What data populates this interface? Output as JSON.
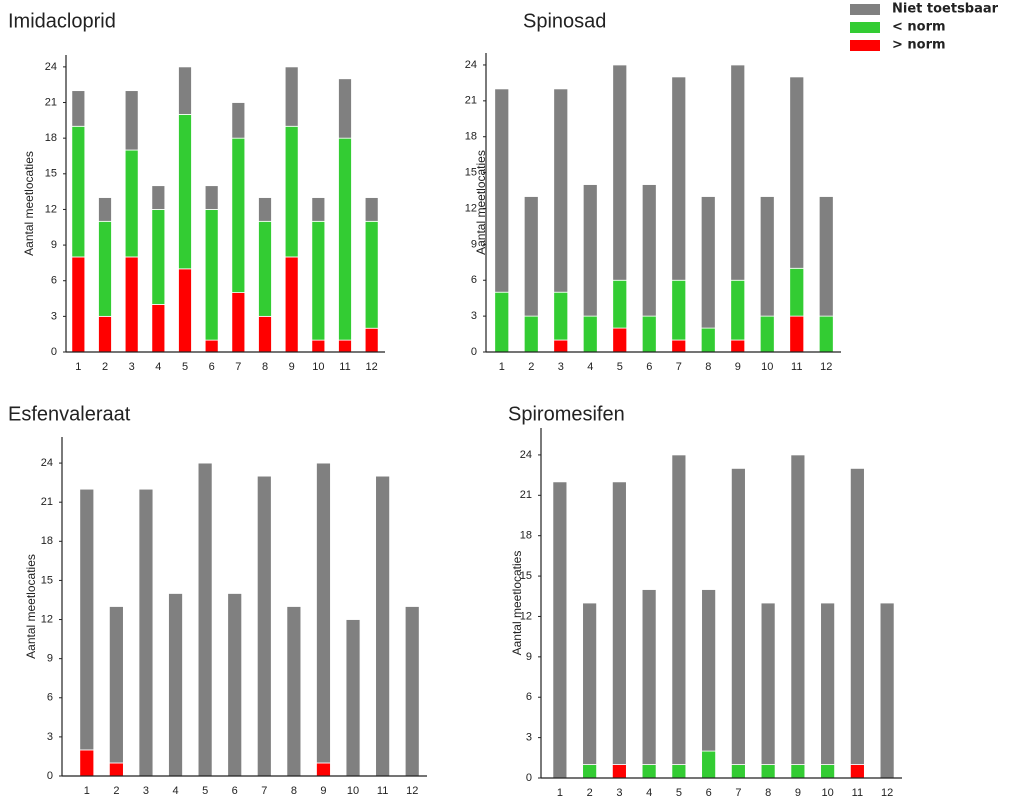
{
  "chart_data": [
    {
      "type": "bar",
      "title": "Imidacloprid",
      "ylabel": "Aantal meetlocaties",
      "categories": [
        "1",
        "2",
        "3",
        "4",
        "5",
        "6",
        "7",
        "8",
        "9",
        "10",
        "11",
        "12"
      ],
      "series": [
        {
          "name": "> norm",
          "color": "#ff0000",
          "values": [
            8,
            3,
            8,
            4,
            7,
            1,
            5,
            3,
            8,
            1,
            1,
            2
          ]
        },
        {
          "name": "< norm",
          "color": "#33cc33",
          "values": [
            11,
            8,
            9,
            8,
            13,
            11,
            13,
            8,
            11,
            10,
            17,
            9
          ]
        },
        {
          "name": "Niet toetsbaar",
          "color": "#808080",
          "values": [
            3,
            2,
            5,
            2,
            4,
            2,
            3,
            2,
            5,
            2,
            5,
            2
          ]
        }
      ],
      "ylim": [
        0,
        25
      ],
      "yticks": [
        0,
        3,
        6,
        9,
        12,
        15,
        18,
        21,
        24
      ]
    },
    {
      "type": "bar",
      "title": "Spinosad",
      "ylabel": "Aantal meetlocaties",
      "categories": [
        "1",
        "2",
        "3",
        "4",
        "5",
        "6",
        "7",
        "8",
        "9",
        "10",
        "11",
        "12"
      ],
      "series": [
        {
          "color": "#ff0000",
          "values": [
            0,
            0,
            1,
            0,
            2,
            0,
            1,
            0,
            1,
            0,
            3,
            0
          ]
        },
        {
          "color": "#33cc33",
          "values": [
            5,
            3,
            4,
            3,
            4,
            3,
            5,
            2,
            5,
            3,
            4,
            3
          ]
        },
        {
          "color": "#808080",
          "values": [
            17,
            10,
            17,
            11,
            18,
            11,
            17,
            11,
            18,
            10,
            16,
            10
          ]
        }
      ],
      "ylim": [
        0,
        25
      ],
      "yticks": [
        0,
        3,
        6,
        9,
        12,
        15,
        18,
        21,
        24
      ]
    },
    {
      "type": "bar",
      "title": "Esfenvaleraat",
      "ylabel": "Aantal meetlocaties",
      "categories": [
        "1",
        "2",
        "3",
        "4",
        "5",
        "6",
        "7",
        "8",
        "9",
        "10",
        "11",
        "12"
      ],
      "series": [
        {
          "color": "#ff0000",
          "values": [
            2,
            1,
            0,
            0,
            0,
            0,
            0,
            0,
            1,
            0,
            0,
            0
          ]
        },
        {
          "color": "#33cc33",
          "values": [
            0,
            0,
            0,
            0,
            0,
            0,
            0,
            0,
            0,
            0,
            0,
            0
          ]
        },
        {
          "color": "#808080",
          "values": [
            20,
            12,
            22,
            14,
            24,
            14,
            23,
            13,
            23,
            12,
            23,
            13
          ]
        }
      ],
      "ylim": [
        0,
        26
      ],
      "yticks": [
        0,
        3,
        6,
        9,
        12,
        15,
        18,
        21,
        24
      ]
    },
    {
      "type": "bar",
      "title": "Spiromesifen",
      "ylabel": "Aantal meetlocaties",
      "categories": [
        "1",
        "2",
        "3",
        "4",
        "5",
        "6",
        "7",
        "8",
        "9",
        "10",
        "11",
        "12"
      ],
      "series": [
        {
          "color": "#ff0000",
          "values": [
            0,
            0,
            1,
            0,
            0,
            0,
            0,
            0,
            0,
            0,
            1,
            0
          ]
        },
        {
          "color": "#33cc33",
          "values": [
            0,
            1,
            0,
            1,
            1,
            2,
            1,
            1,
            1,
            1,
            0,
            0
          ]
        },
        {
          "color": "#808080",
          "values": [
            22,
            12,
            21,
            13,
            23,
            12,
            22,
            12,
            23,
            12,
            22,
            13
          ]
        }
      ],
      "ylim": [
        0,
        26
      ],
      "yticks": [
        0,
        3,
        6,
        9,
        12,
        15,
        18,
        21,
        24
      ]
    }
  ]
}
